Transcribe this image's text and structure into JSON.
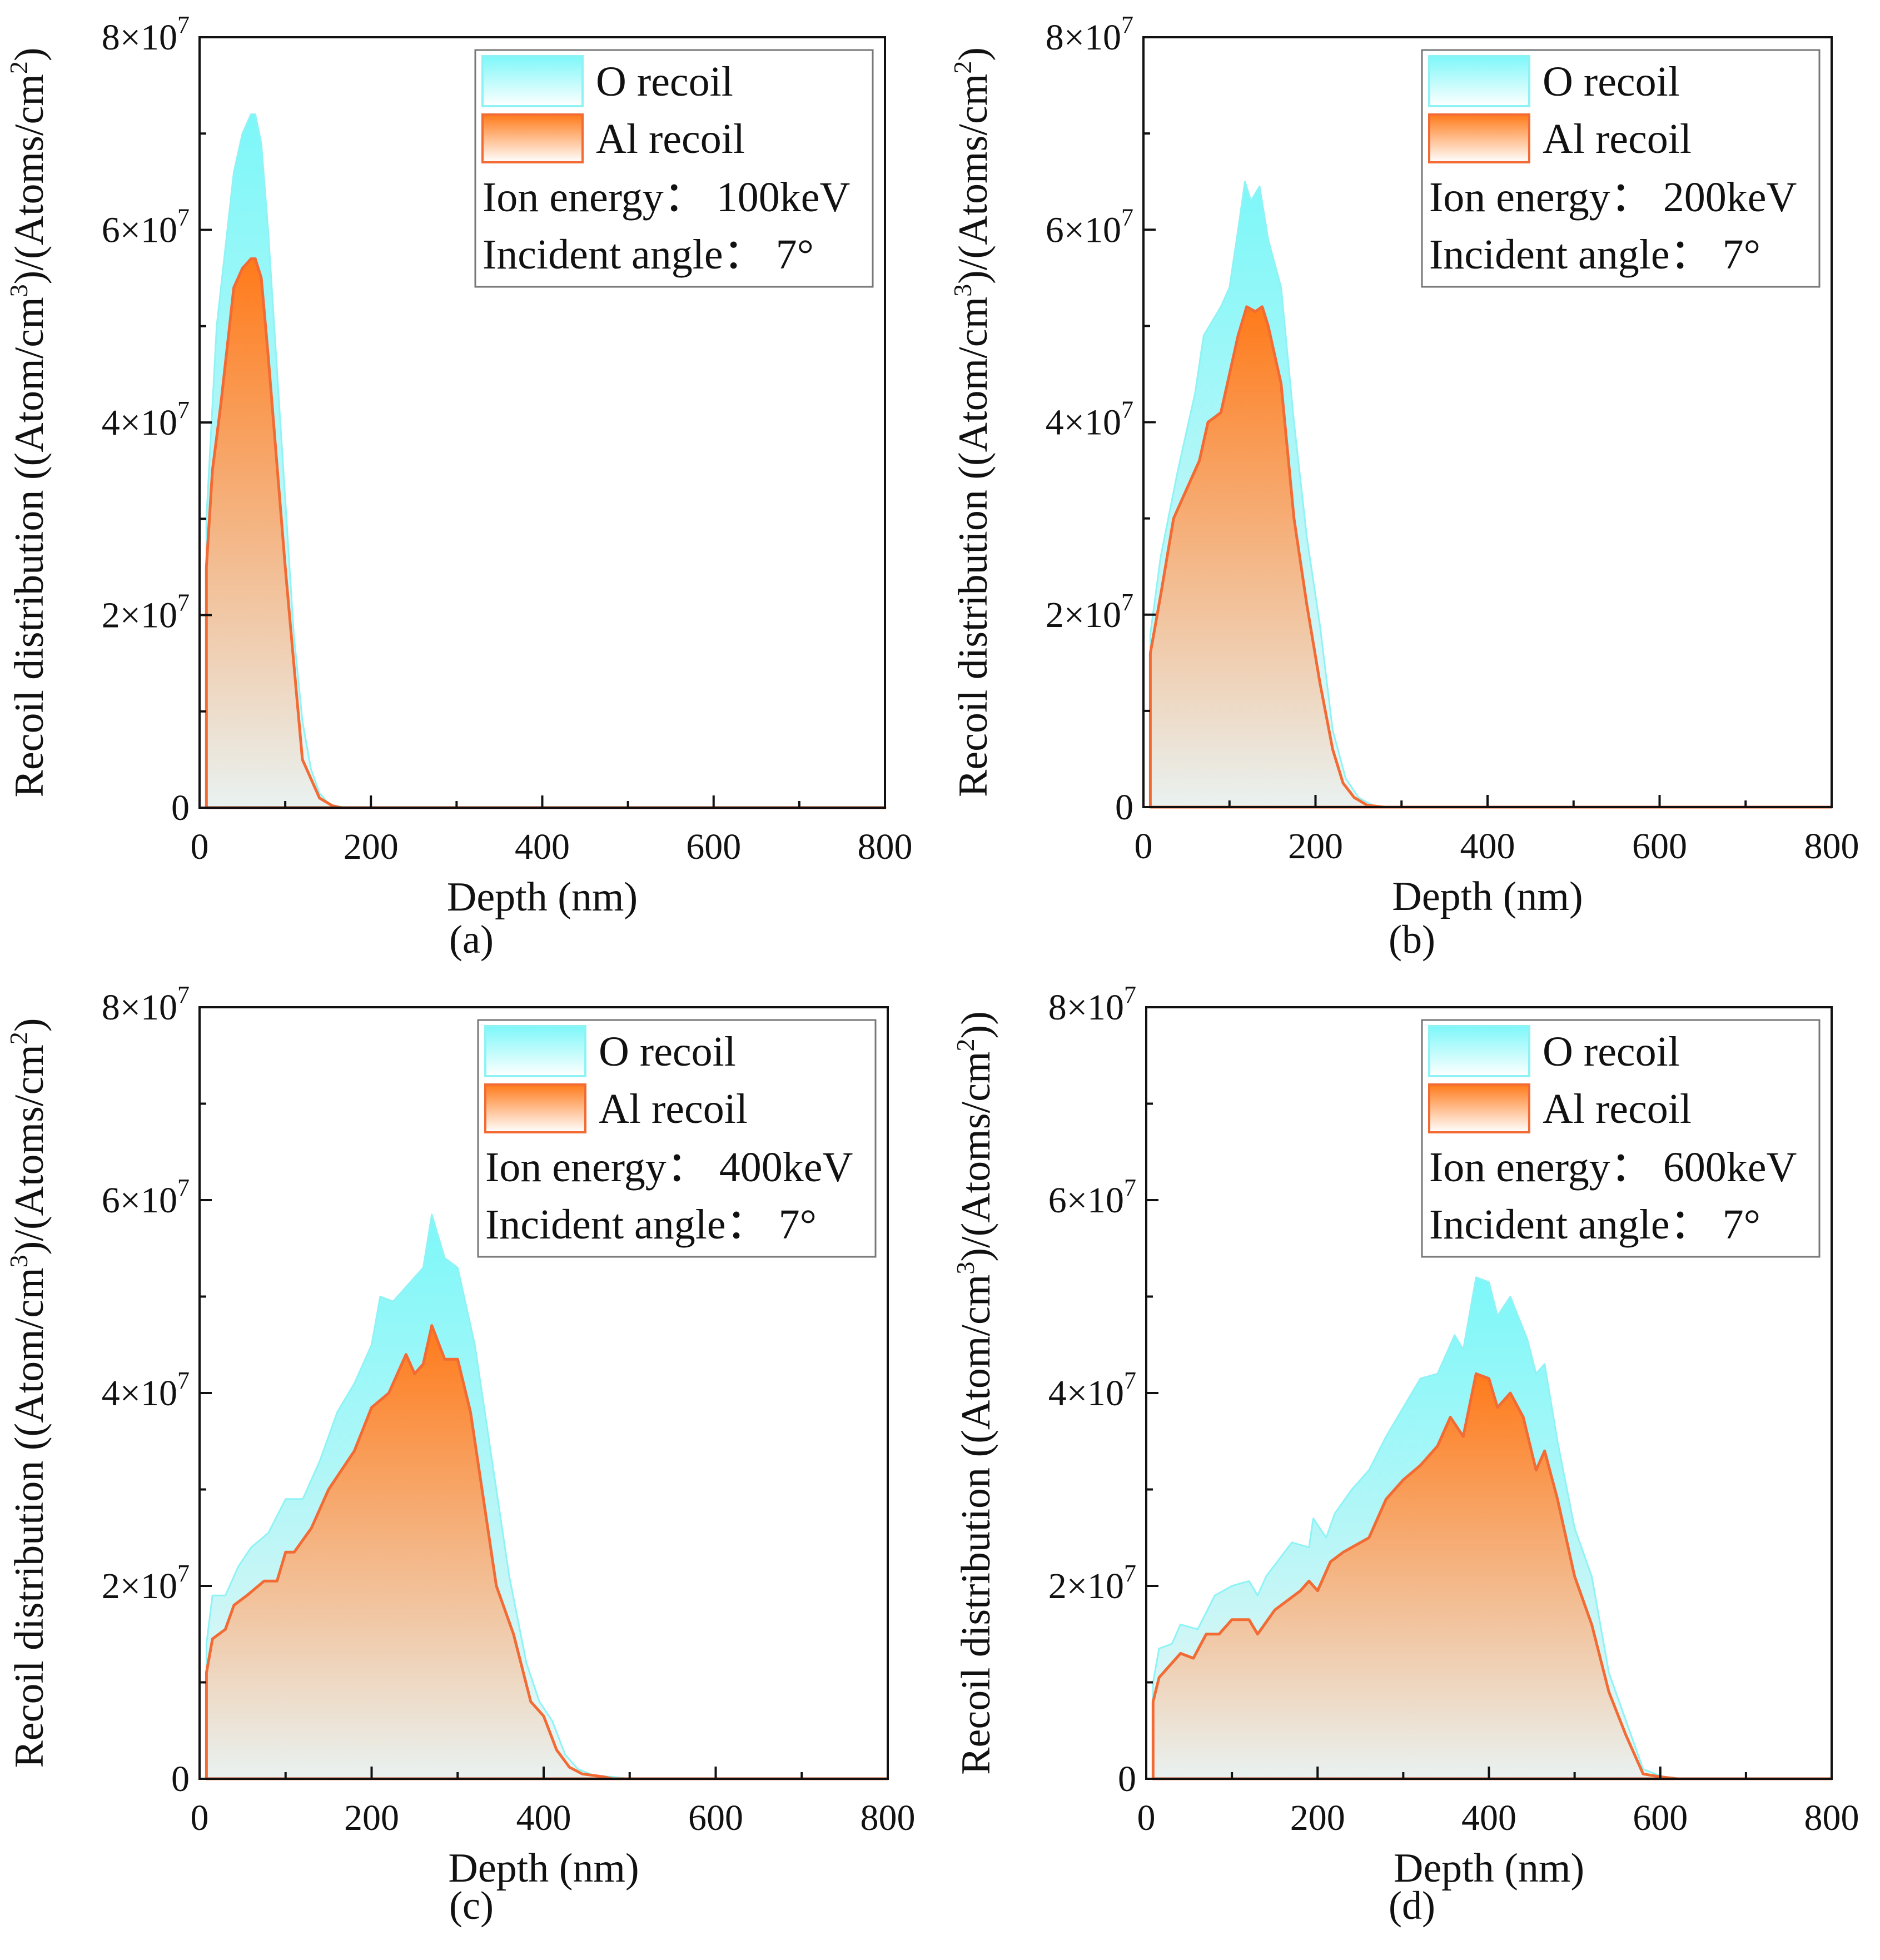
{
  "colors": {
    "o_top": "#7df7f9",
    "o_bottom": "#eef6f5",
    "al_top": "#ff7a1a",
    "al_bottom": "#e9f2f1",
    "al_line": "#f26b35",
    "o_line": "#8ff3f5"
  },
  "chart_data": [
    {
      "type": "area",
      "caption": "(a)",
      "xlabel": "Depth (nm)",
      "ylabel": {
        "pre": "Recoil distribution ((Atom/cm",
        "sup1": "3",
        "mid": ")/(Atoms/cm",
        "sup2": "2",
        "post": ")"
      },
      "xlim": [
        0,
        800
      ],
      "ylim": [
        0,
        80000000.0
      ],
      "xticks": [
        "0",
        "200",
        "400",
        "600",
        "800"
      ],
      "yticks": [
        {
          "base": "0",
          "exp": ""
        },
        {
          "base": "2×10",
          "exp": "7"
        },
        {
          "base": "4×10",
          "exp": "7"
        },
        {
          "base": "6×10",
          "exp": "7"
        },
        {
          "base": "8×10",
          "exp": "7"
        }
      ],
      "legend": {
        "position": "top-right",
        "entries": [
          "O recoil",
          "Al recoil"
        ],
        "notes": [
          "Ion energy：  100keV",
          "Incident angle：  7°"
        ]
      },
      "y_unit": 10000000.0,
      "series": [
        {
          "name": "O recoil",
          "x": [
            8,
            20,
            30,
            40,
            50,
            60,
            65,
            72,
            80,
            90,
            100,
            110,
            120,
            130,
            140,
            150,
            160,
            800
          ],
          "y": [
            3.0,
            5.0,
            5.8,
            6.6,
            7.0,
            7.2,
            7.2,
            6.9,
            6.0,
            4.6,
            3.2,
            1.8,
            0.9,
            0.4,
            0.15,
            0.05,
            0,
            0
          ]
        },
        {
          "name": "Al recoil",
          "x": [
            8,
            15,
            25,
            40,
            50,
            60,
            65,
            72,
            80,
            90,
            100,
            110,
            120,
            130,
            140,
            155,
            165,
            800
          ],
          "y": [
            2.5,
            3.5,
            4.2,
            5.4,
            5.6,
            5.7,
            5.7,
            5.5,
            4.7,
            3.6,
            2.5,
            1.5,
            0.5,
            0.3,
            0.1,
            0.02,
            0,
            0
          ]
        }
      ]
    },
    {
      "type": "area",
      "caption": "(b)",
      "xlabel": "Depth (nm)",
      "ylabel": {
        "pre": "Recoil distribution ((Atom/cm",
        "sup1": "3",
        "mid": ")/(Atoms/cm",
        "sup2": "2",
        "post": ")"
      },
      "xlim": [
        0,
        800
      ],
      "ylim": [
        0,
        80000000.0
      ],
      "xticks": [
        "0",
        "200",
        "400",
        "600",
        "800"
      ],
      "yticks": [
        {
          "base": "0",
          "exp": ""
        },
        {
          "base": "2×10",
          "exp": "7"
        },
        {
          "base": "4×10",
          "exp": "7"
        },
        {
          "base": "6×10",
          "exp": "7"
        },
        {
          "base": "8×10",
          "exp": "7"
        }
      ],
      "legend": {
        "position": "top-right",
        "entries": [
          "O recoil",
          "Al recoil"
        ],
        "notes": [
          "Ion energy：  200keV",
          "Incident angle：  7°"
        ]
      },
      "y_unit": 10000000.0,
      "series": [
        {
          "name": "O recoil",
          "x": [
            8,
            20,
            40,
            60,
            70,
            90,
            100,
            110,
            118,
            125,
            135,
            145,
            160,
            175,
            190,
            205,
            220,
            235,
            250,
            270,
            800
          ],
          "y": [
            1.8,
            2.6,
            3.5,
            4.3,
            4.9,
            5.2,
            5.4,
            6.0,
            6.5,
            6.3,
            6.45,
            5.9,
            5.4,
            4.0,
            2.8,
            1.9,
            0.8,
            0.3,
            0.1,
            0,
            0
          ]
        },
        {
          "name": "Al recoil",
          "x": [
            8,
            20,
            35,
            50,
            65,
            75,
            90,
            100,
            110,
            120,
            130,
            138,
            145,
            160,
            175,
            190,
            205,
            220,
            232,
            245,
            260,
            280,
            800
          ],
          "y": [
            1.6,
            2.2,
            3.0,
            3.3,
            3.6,
            4.0,
            4.1,
            4.5,
            4.9,
            5.2,
            5.15,
            5.2,
            5.0,
            4.4,
            3.0,
            2.1,
            1.3,
            0.6,
            0.25,
            0.1,
            0.02,
            0,
            0
          ]
        }
      ]
    },
    {
      "type": "area",
      "caption": "(c)",
      "xlabel": "Depth (nm)",
      "ylabel": {
        "pre": "Recoil distribution ((Atom/cm",
        "sup1": "3",
        "mid": ")/(Atoms/cm",
        "sup2": "2",
        "post": ")"
      },
      "xlim": [
        0,
        800
      ],
      "ylim": [
        0,
        80000000.0
      ],
      "xticks": [
        "0",
        "200",
        "400",
        "600",
        "800"
      ],
      "yticks": [
        {
          "base": "0",
          "exp": ""
        },
        {
          "base": "2×10",
          "exp": "7"
        },
        {
          "base": "4×10",
          "exp": "7"
        },
        {
          "base": "6×10",
          "exp": "7"
        },
        {
          "base": "8×10",
          "exp": "7"
        }
      ],
      "legend": {
        "position": "top-right",
        "entries": [
          "O recoil",
          "Al recoil"
        ],
        "notes": [
          "Ion energy：  400keV",
          "Incident angle：  7°"
        ]
      },
      "y_unit": 10000000.0,
      "series": [
        {
          "name": "O recoil",
          "x": [
            8,
            15,
            30,
            45,
            60,
            80,
            100,
            120,
            140,
            160,
            180,
            200,
            210,
            225,
            240,
            260,
            270,
            285,
            300,
            320,
            340,
            360,
            380,
            395,
            410,
            425,
            440,
            460,
            480,
            500,
            800
          ],
          "y": [
            1.4,
            1.9,
            1.9,
            2.2,
            2.4,
            2.55,
            2.9,
            2.9,
            3.3,
            3.8,
            4.1,
            4.5,
            5.0,
            4.95,
            5.1,
            5.3,
            5.85,
            5.4,
            5.3,
            4.5,
            3.3,
            2.1,
            1.2,
            0.8,
            0.6,
            0.25,
            0.1,
            0.03,
            0.02,
            0,
            0
          ]
        },
        {
          "name": "Al recoil",
          "x": [
            8,
            15,
            30,
            40,
            55,
            75,
            90,
            100,
            110,
            130,
            150,
            180,
            200,
            220,
            240,
            250,
            260,
            270,
            285,
            300,
            315,
            330,
            345,
            365,
            385,
            400,
            415,
            430,
            445,
            470,
            480,
            800
          ],
          "y": [
            1.1,
            1.45,
            1.55,
            1.8,
            1.9,
            2.05,
            2.05,
            2.35,
            2.35,
            2.6,
            3.0,
            3.4,
            3.85,
            4.0,
            4.4,
            4.2,
            4.3,
            4.7,
            4.35,
            4.35,
            3.8,
            2.9,
            2.0,
            1.5,
            0.8,
            0.65,
            0.3,
            0.12,
            0.05,
            0.02,
            0,
            0
          ]
        }
      ]
    },
    {
      "type": "area",
      "caption": "(d)",
      "xlabel": "Depth (nm)",
      "ylabel": {
        "pre": "Recoil distribution ((Atom/cm",
        "sup1": "3",
        "mid": ")/(Atoms/cm",
        "sup2": "2",
        "post": "))"
      },
      "xlim": [
        0,
        800
      ],
      "ylim": [
        0,
        80000000.0
      ],
      "xticks": [
        "0",
        "200",
        "400",
        "600",
        "800"
      ],
      "yticks": [
        {
          "base": "0",
          "exp": ""
        },
        {
          "base": "2×10",
          "exp": "7"
        },
        {
          "base": "4×10",
          "exp": "7"
        },
        {
          "base": "6×10",
          "exp": "7"
        },
        {
          "base": "8×10",
          "exp": "7"
        }
      ],
      "legend": {
        "position": "top-right",
        "entries": [
          "O recoil",
          "Al recoil"
        ],
        "notes": [
          "Ion energy：  600keV",
          "Incident angle：  7°"
        ]
      },
      "y_unit": 10000000.0,
      "series": [
        {
          "name": "O recoil",
          "x": [
            8,
            15,
            30,
            40,
            60,
            80,
            100,
            120,
            130,
            140,
            170,
            190,
            195,
            210,
            220,
            240,
            260,
            280,
            300,
            320,
            340,
            360,
            370,
            385,
            400,
            410,
            425,
            445,
            455,
            465,
            480,
            500,
            520,
            540,
            560,
            580,
            600,
            620,
            800
          ],
          "y": [
            1.0,
            1.35,
            1.4,
            1.6,
            1.55,
            1.9,
            2.0,
            2.05,
            1.9,
            2.1,
            2.45,
            2.4,
            2.7,
            2.5,
            2.75,
            3.0,
            3.2,
            3.55,
            3.85,
            4.15,
            4.2,
            4.6,
            4.45,
            5.2,
            5.15,
            4.8,
            5.0,
            4.55,
            4.2,
            4.3,
            3.5,
            2.6,
            2.1,
            1.1,
            0.6,
            0.1,
            0.03,
            0,
            0
          ]
        },
        {
          "name": "Al recoil",
          "x": [
            8,
            15,
            30,
            40,
            55,
            70,
            85,
            100,
            120,
            130,
            150,
            180,
            190,
            200,
            215,
            230,
            260,
            280,
            300,
            320,
            340,
            355,
            370,
            385,
            400,
            410,
            425,
            440,
            455,
            465,
            480,
            500,
            520,
            540,
            560,
            580,
            600,
            620,
            800
          ],
          "y": [
            0.8,
            1.05,
            1.2,
            1.3,
            1.25,
            1.5,
            1.5,
            1.65,
            1.65,
            1.5,
            1.75,
            1.95,
            2.05,
            1.95,
            2.25,
            2.35,
            2.5,
            2.9,
            3.1,
            3.25,
            3.45,
            3.75,
            3.55,
            4.2,
            4.15,
            3.85,
            4.0,
            3.75,
            3.2,
            3.4,
            2.9,
            2.1,
            1.6,
            0.9,
            0.45,
            0.05,
            0.02,
            0,
            0
          ]
        }
      ]
    }
  ]
}
